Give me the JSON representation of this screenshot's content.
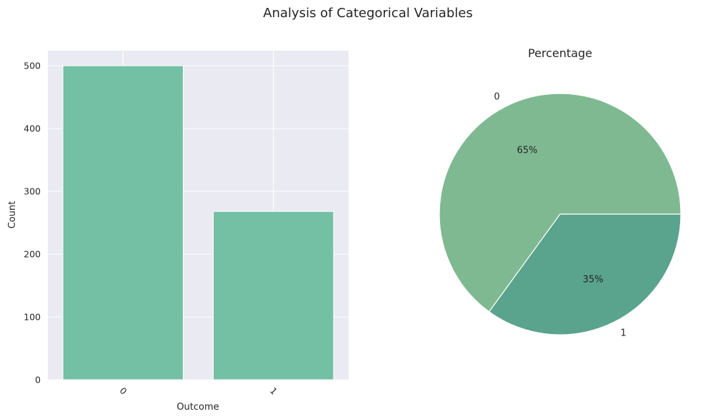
{
  "figure_title": "Analysis of Categorical Variables",
  "chart_data": [
    {
      "type": "bar",
      "title": "",
      "xlabel": "Outcome",
      "ylabel": "Count",
      "categories": [
        "0",
        "1"
      ],
      "values": [
        500,
        268
      ],
      "ylim": [
        0,
        524
      ],
      "yticks": [
        0,
        100,
        200,
        300,
        400,
        500
      ],
      "grid": true,
      "bar_color": "#74c0a5",
      "background_color": "#eaeaf2"
    },
    {
      "type": "pie",
      "title": "Percentage",
      "labels": [
        "0",
        "1"
      ],
      "values": [
        65,
        35
      ],
      "value_labels": [
        "65%",
        "35%"
      ],
      "colors": [
        "#7fb991",
        "#5aa38d"
      ]
    }
  ]
}
